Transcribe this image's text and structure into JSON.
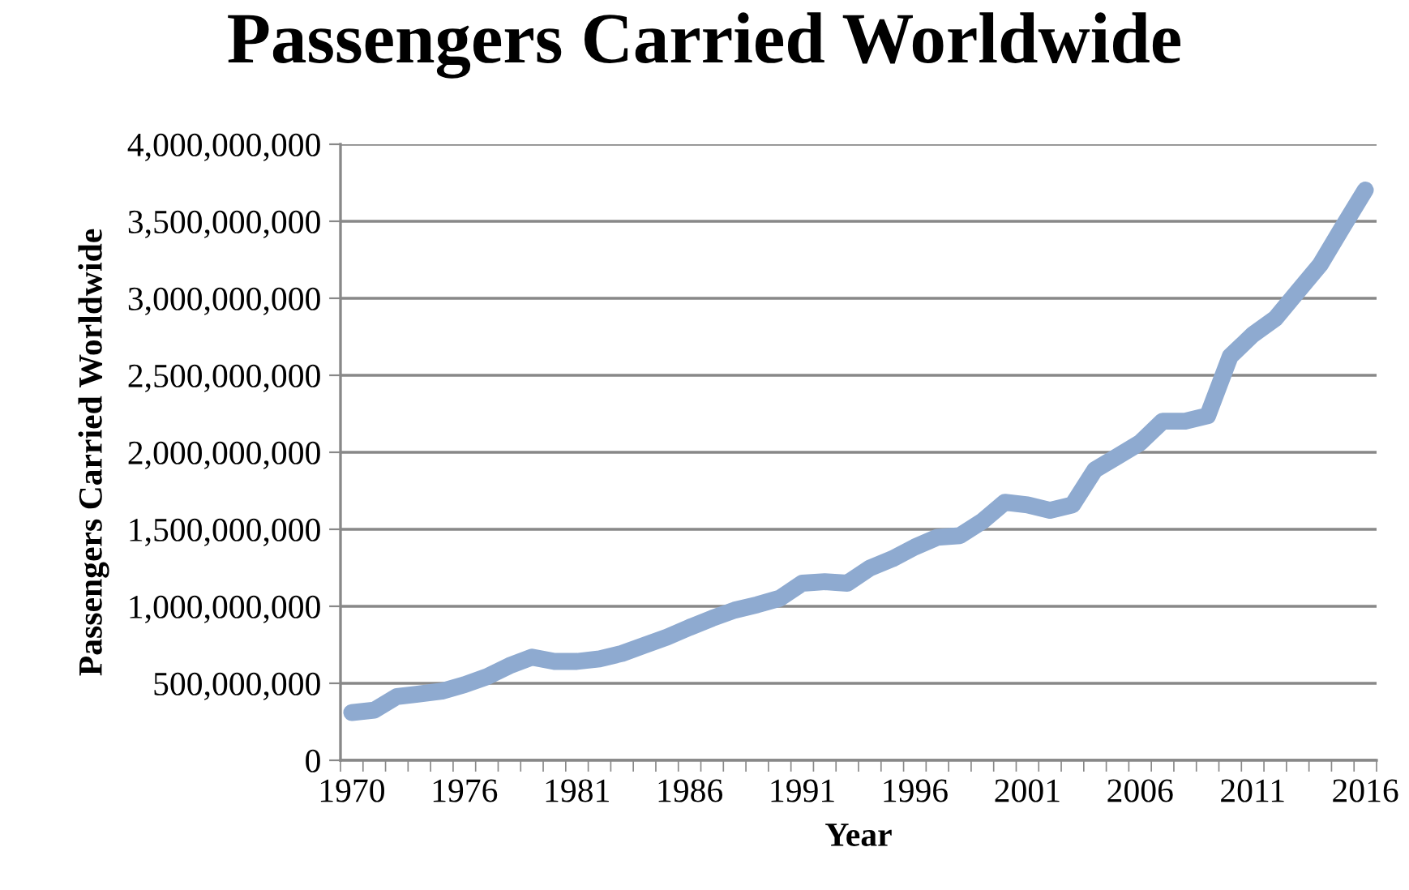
{
  "chart_data": {
    "type": "line",
    "title": "Passengers Carried Worldwide",
    "xlabel": "Year",
    "ylabel": "Passengers Carried Worldwide",
    "categories": [
      "1970",
      null,
      null,
      null,
      null,
      "1976",
      null,
      null,
      null,
      null,
      "1981",
      null,
      null,
      null,
      null,
      "1986",
      null,
      null,
      null,
      null,
      "1991",
      null,
      null,
      null,
      null,
      "1996",
      null,
      null,
      null,
      null,
      "2001",
      null,
      null,
      null,
      null,
      "2006",
      null,
      null,
      null,
      null,
      "2011",
      null,
      null,
      null,
      null,
      "2016"
    ],
    "series": [
      {
        "color": "#8eaad0",
        "values": [
          310000000,
          326000000,
          414000000,
          431000000,
          449000000,
          491000000,
          543000000,
          614000000,
          670000000,
          642000000,
          642000000,
          659000000,
          694000000,
          747000000,
          800000000,
          863000000,
          922000000,
          975000000,
          1010000000,
          1052000000,
          1150000000,
          1160000000,
          1150000000,
          1248000000,
          1308000000,
          1385000000,
          1448000000,
          1459000000,
          1553000000,
          1676000000,
          1659000000,
          1623000000,
          1659000000,
          1887000000,
          1974000000,
          2062000000,
          2202000000,
          2202000000,
          2237000000,
          2623000000,
          2763000000,
          2868000000,
          3044000000,
          3219000000,
          3464000000,
          3703000000
        ]
      }
    ],
    "ylim": [
      0,
      4000000000
    ],
    "yticks": [
      0,
      {
        "value": 500000000,
        "label": "500,000,000"
      },
      {
        "value": 1000000000,
        "label": "1,000,000,000"
      },
      {
        "value": 1500000000,
        "label": "1,500,000,000"
      },
      {
        "value": 2000000000,
        "label": "2,000,000,000"
      },
      {
        "value": 2500000000,
        "label": "2,500,000,000"
      },
      {
        "value": 3000000000,
        "label": "3,000,000,000"
      },
      {
        "value": 3500000000,
        "label": "3,500,000,000"
      },
      {
        "value": 4000000000,
        "label": "4,000,000,000"
      }
    ],
    "grid": "y",
    "marker": "none",
    "line_style": "solid",
    "legend": false
  }
}
